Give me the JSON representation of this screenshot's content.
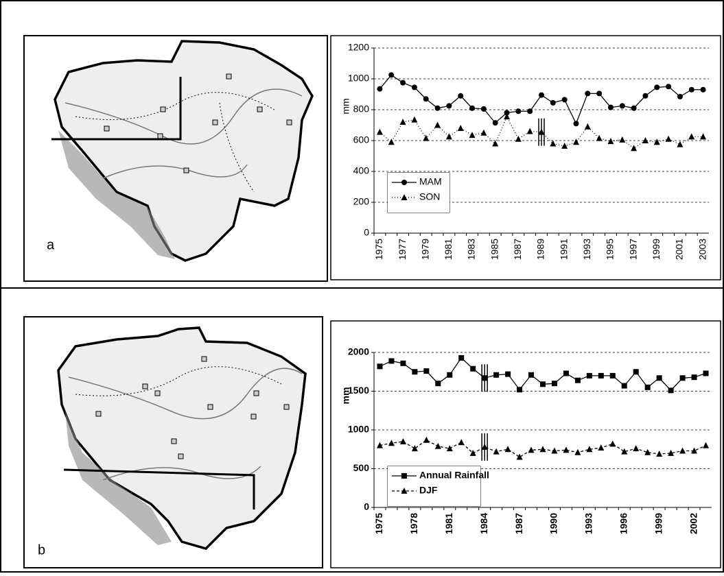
{
  "panel_labels": [
    "a",
    "b"
  ],
  "chart_data": [
    {
      "type": "line",
      "y_label": "mm",
      "legend": "bottom-left",
      "categories": [
        "1975",
        null,
        "1977",
        null,
        "1979",
        null,
        "1981",
        null,
        "1983",
        null,
        "1985",
        null,
        "1987",
        null,
        "1989",
        null,
        "1991",
        null,
        "1993",
        null,
        "1995",
        null,
        "1997",
        null,
        "1999",
        null,
        "2001",
        null,
        "2003"
      ],
      "ylim": [
        0,
        1200
      ],
      "yticks": [
        0,
        200,
        400,
        600,
        800,
        1000,
        1200
      ],
      "grid": true,
      "series": [
        {
          "name": "MAM",
          "color": "#000000",
          "marker": "circle",
          "line_style": "solid",
          "values": [
            935,
            1025,
            975,
            945,
            870,
            810,
            825,
            890,
            810,
            805,
            715,
            780,
            790,
            790,
            895,
            845,
            865,
            710,
            905,
            905,
            815,
            825,
            810,
            890,
            945,
            950,
            885,
            930,
            930
          ]
        },
        {
          "name": "SON",
          "color": "#000000",
          "marker": "triangle",
          "line_style": "dotted",
          "change_point": 1989,
          "values": [
            655,
            590,
            720,
            735,
            615,
            700,
            625,
            680,
            635,
            650,
            580,
            755,
            610,
            660,
            655,
            580,
            565,
            590,
            690,
            615,
            595,
            605,
            550,
            600,
            590,
            610,
            575,
            625,
            625
          ]
        }
      ]
    },
    {
      "type": "line",
      "y_label": "mm",
      "legend": "bottom-left",
      "categories": [
        "1975",
        null,
        null,
        "1978",
        null,
        null,
        "1981",
        null,
        null,
        "1984",
        null,
        null,
        "1987",
        null,
        null,
        "1990",
        null,
        null,
        "1993",
        null,
        null,
        "1996",
        null,
        null,
        "1999",
        null,
        null,
        "2002",
        null
      ],
      "ylim": [
        0,
        2000
      ],
      "yticks": [
        0,
        500,
        1000,
        1500,
        2000
      ],
      "grid": true,
      "series": [
        {
          "name": "Annual Rainfall",
          "color": "#000000",
          "marker": "square",
          "line_style": "solid",
          "change_point": 1984,
          "values": [
            1820,
            1890,
            1860,
            1750,
            1760,
            1600,
            1710,
            1930,
            1790,
            1670,
            1710,
            1720,
            1520,
            1710,
            1590,
            1600,
            1730,
            1640,
            1700,
            1700,
            1700,
            1570,
            1750,
            1550,
            1670,
            1510,
            1670,
            1680,
            1730
          ]
        },
        {
          "name": "DJF",
          "color": "#000000",
          "marker": "triangle",
          "line_style": "dashed",
          "change_point": 1984,
          "values": [
            800,
            830,
            850,
            760,
            870,
            790,
            760,
            840,
            700,
            780,
            720,
            750,
            650,
            740,
            750,
            730,
            740,
            710,
            750,
            770,
            820,
            720,
            760,
            710,
            690,
            700,
            730,
            730,
            800
          ]
        }
      ]
    }
  ]
}
